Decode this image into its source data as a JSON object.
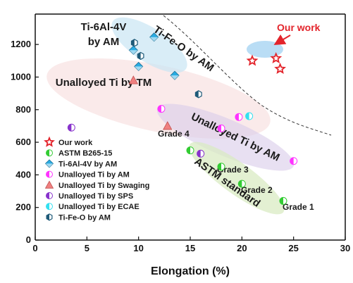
{
  "chart_data": {
    "type": "scatter",
    "xlabel": "Elongation (%)",
    "ylabel": "",
    "xlim": [
      0,
      30
    ],
    "ylim": [
      0,
      1300
    ],
    "x_ticks": [
      "0",
      "5",
      "10",
      "15",
      "20",
      "25",
      "30"
    ],
    "y_ticks": [
      "0",
      "200",
      "400",
      "600",
      "800",
      "1000",
      "1200"
    ],
    "grid": false,
    "legend_position": "bottom-left",
    "series": [
      {
        "name": "Our work",
        "marker": "star",
        "color": "#e3242b",
        "points": [
          [
            21.0,
            1100
          ],
          [
            23.3,
            1115
          ],
          [
            23.7,
            1050
          ]
        ]
      },
      {
        "name": "ASTM B265-15",
        "marker": "circle",
        "color": "#33cc33",
        "points": [
          [
            15.0,
            550
          ],
          [
            18.0,
            450
          ],
          [
            20.0,
            345
          ],
          [
            24.0,
            240
          ]
        ]
      },
      {
        "name": "Ti-6Al-4V by AM",
        "marker": "diamond",
        "color": "#29abe2",
        "points": [
          [
            9.5,
            1165
          ],
          [
            10.0,
            1065
          ],
          [
            11.5,
            1245
          ],
          [
            13.5,
            1010
          ]
        ]
      },
      {
        "name": "Unalloyed Ti by AM",
        "marker": "circle",
        "color": "#ff33ff",
        "points": [
          [
            12.2,
            805
          ],
          [
            18.0,
            685
          ],
          [
            19.7,
            755
          ],
          [
            25.0,
            485
          ]
        ]
      },
      {
        "name": "Unalloyed Ti by Swaging",
        "marker": "triangle",
        "color": "#f08080",
        "points": [
          [
            9.5,
            980
          ],
          [
            12.8,
            700
          ]
        ]
      },
      {
        "name": "Unalloyed Ti by SPS",
        "marker": "circle",
        "color": "#8833cc",
        "points": [
          [
            3.5,
            690
          ],
          [
            16.0,
            530
          ]
        ]
      },
      {
        "name": "Unalloyed Ti by ECAE",
        "marker": "circle",
        "color": "#33e0f0",
        "points": [
          [
            20.7,
            760
          ]
        ]
      },
      {
        "name": "Ti-Fe-O by AM",
        "marker": "hexagon",
        "color": "#1e5a78",
        "points": [
          [
            9.6,
            1210
          ],
          [
            10.2,
            1130
          ],
          [
            15.8,
            895
          ]
        ]
      }
    ],
    "region_labels": [
      "Ti-6Al-4V",
      "by AM",
      "Ti-Fe-O by AM",
      "Unalloyed Ti by TM",
      "Unalloyed Ti by AM",
      "ASTM standard"
    ],
    "point_labels": [
      "Grade 4",
      "Grade 3",
      "Grade 2",
      "Grade 1"
    ],
    "annotation": "Our work"
  }
}
